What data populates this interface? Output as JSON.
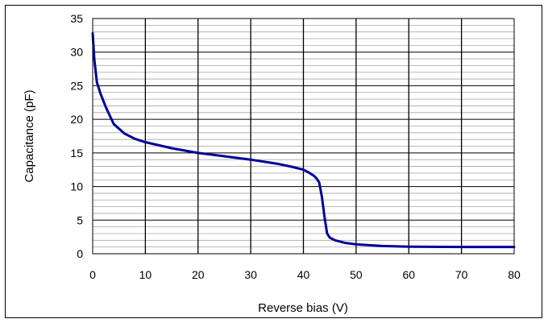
{
  "chart_data": {
    "type": "line",
    "title": "",
    "xlabel": "Reverse bias (V)",
    "ylabel": "Capacitance (pF)",
    "xlim": [
      0,
      80
    ],
    "ylim": [
      0,
      35
    ],
    "x_ticks": [
      "0",
      "10",
      "20",
      "30",
      "40",
      "50",
      "60",
      "70",
      "80"
    ],
    "y_ticks": [
      "0",
      "5",
      "10",
      "15",
      "20",
      "25",
      "30",
      "35"
    ],
    "grid": {
      "major_x": true,
      "major_y": true,
      "minor_y": true
    },
    "series": [
      {
        "color": "#000099",
        "x": [
          0,
          0.3,
          0.8,
          1.5,
          2.5,
          4,
          6,
          8,
          10,
          15,
          20,
          25,
          30,
          35,
          38,
          40,
          41,
          42,
          42.5,
          43,
          43.5,
          44,
          44.5,
          45,
          46,
          48,
          50,
          55,
          60,
          70,
          80
        ],
        "y": [
          32.8,
          29,
          25.5,
          23.8,
          21.8,
          19.3,
          17.9,
          17.1,
          16.6,
          15.7,
          15.0,
          14.5,
          14.0,
          13.4,
          12.9,
          12.5,
          12.1,
          11.6,
          11.2,
          10.6,
          8.5,
          5.5,
          3.0,
          2.4,
          2.0,
          1.6,
          1.4,
          1.15,
          1.05,
          1.0,
          1.0
        ]
      }
    ]
  }
}
